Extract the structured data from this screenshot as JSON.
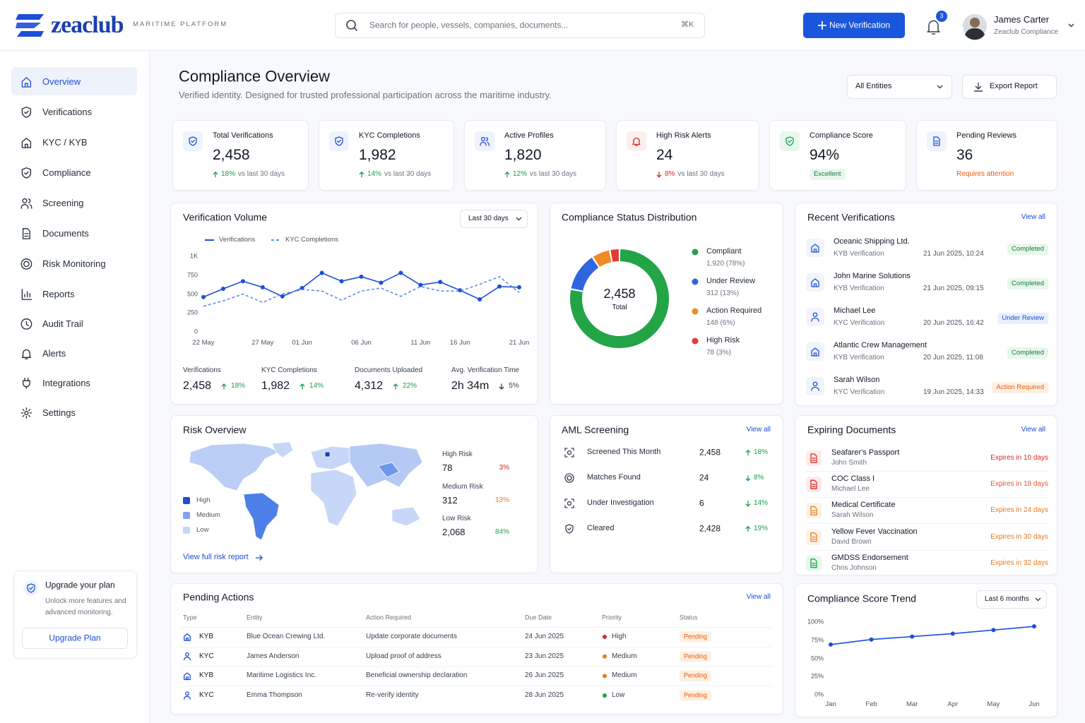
{
  "header": {
    "logo": "zeaclub",
    "tagline": "MARITIME PLATFORM",
    "search_placeholder": "Search for people, vessels, companies, documents...",
    "search_shortcut": "⌘K",
    "new_button": "New Verification",
    "notification_count": 3,
    "user": {
      "name": "James Carter",
      "role": "Zeaclub Compliance"
    }
  },
  "nav": {
    "items": [
      "Overview",
      "Verifications",
      "KYC / KYB",
      "Compliance",
      "Screening",
      "Documents",
      "Risk Monitoring",
      "Reports",
      "Audit Trail",
      "Alerts",
      "Integrations",
      "Settings"
    ]
  },
  "upgrade": {
    "title": "Upgrade your plan",
    "text": "Unlock more features and advanced monitoring.",
    "button": "Upgrade Plan"
  },
  "page": {
    "title": "Compliance Overview",
    "subtitle": "Verified identity. Designed for trusted professional participation across the maritime industry.",
    "entity_filter": "All Entities",
    "export_button": "Export Report"
  },
  "kpis": [
    {
      "label": "Total Verifications",
      "value": "2,458",
      "change": "18%",
      "direction": "up",
      "color": "#16a34a",
      "note": "vs last 30 days"
    },
    {
      "label": "KYC Completions",
      "value": "1,982",
      "change": "14%",
      "direction": "up",
      "color": "#16a34a",
      "note": "vs last 30 days"
    },
    {
      "label": "Active Profiles",
      "value": "1,820",
      "change": "12%",
      "direction": "up",
      "color": "#16a34a",
      "note": "vs last 30 days"
    },
    {
      "label": "High Risk Alerts",
      "value": "24",
      "change": "8%",
      "direction": "down",
      "color": "#dc2626",
      "note": "vs last 30 days"
    },
    {
      "label": "Compliance Score",
      "value": "94%",
      "badge": "Excellent",
      "color": "#16a34a"
    },
    {
      "label": "Pending Reviews",
      "value": "36",
      "status": "Requires attention",
      "color": "#ea580c"
    }
  ],
  "volume": {
    "type": "line",
    "title": "Verification Volume",
    "range": "Last 30 days",
    "categories": [
      "22 May",
      null,
      null,
      "27 May",
      null,
      "01 Jun",
      null,
      null,
      "06 Jun",
      null,
      null,
      "11 Jun",
      null,
      "16 Jun",
      null,
      null,
      "21 Jun"
    ],
    "series": [
      {
        "name": "Verifications",
        "color": "#1d4ed8",
        "style": "solid",
        "markers": true,
        "values": [
          460,
          570,
          670,
          590,
          470,
          580,
          780,
          670,
          730,
          650,
          780,
          620,
          660,
          550,
          430,
          600,
          590
        ]
      },
      {
        "name": "KYC Completions",
        "color": "#5b8def",
        "style": "dashed",
        "markers": false,
        "values": [
          340,
          410,
          500,
          390,
          500,
          560,
          540,
          420,
          540,
          580,
          470,
          600,
          540,
          540,
          630,
          730,
          520
        ]
      }
    ],
    "ylim": [
      0,
      1000
    ],
    "yticks": [
      {
        "value": 1000,
        "label": "1K"
      },
      750,
      500,
      250,
      0
    ],
    "stats": [
      {
        "label": "Verifications",
        "value": "2,458",
        "change": "18%",
        "direction": "up",
        "color": "#16a34a"
      },
      {
        "label": "KYC Completions",
        "value": "1,982",
        "change": "14%",
        "direction": "up",
        "color": "#16a34a"
      },
      {
        "label": "Documents Uploaded",
        "value": "4,312",
        "change": "22%",
        "direction": "up",
        "color": "#16a34a"
      },
      {
        "label": "Avg. Verification Time",
        "value": "2h 34m",
        "change": "5%",
        "direction": "down",
        "color": "#374151"
      }
    ]
  },
  "distribution": {
    "type": "pie",
    "title": "Compliance Status Distribution",
    "total": "2,458",
    "total_label": "Total",
    "categories": [
      "Compliant",
      "Under Review",
      "Action Required",
      "High Risk"
    ],
    "values": [
      1920,
      312,
      148,
      78
    ],
    "value_labels": [
      "1,920 (78%)",
      "312 (13%)",
      "148 (6%)",
      "78 (3%)"
    ],
    "colors": [
      "#22a447",
      "#2f66e0",
      "#f08a24",
      "#e53935"
    ]
  },
  "recent": {
    "title": "Recent Verifications",
    "view_all": "View all",
    "items": [
      {
        "name": "Oceanic Shipping Ltd.",
        "type": "KYB Verification",
        "date": "21 Jun 2025, 10:24",
        "status": "Completed",
        "status_color": "green"
      },
      {
        "name": "John Marine Solutions",
        "type": "KYB Verification",
        "date": "21 Jun 2025, 09:15",
        "status": "Completed",
        "status_color": "green"
      },
      {
        "name": "Michael Lee",
        "type": "KYC Verification",
        "date": "20 Jun 2025, 16:42",
        "status": "Under Review",
        "status_color": "blue"
      },
      {
        "name": "Atlantic Crew Management",
        "type": "KYB Verification",
        "date": "20 Jun 2025, 11:08",
        "status": "Completed",
        "status_color": "green"
      },
      {
        "name": "Sarah Wilson",
        "type": "KYC Verification",
        "date": "19 Jun 2025, 14:33",
        "status": "Action Required",
        "status_color": "orange"
      }
    ]
  },
  "risk": {
    "title": "Risk Overview",
    "legend": [
      "High",
      "Medium",
      "Low"
    ],
    "legend_colors": [
      "#1d4ed8",
      "#7fa3f0",
      "#c7d7f7"
    ],
    "levels": [
      {
        "label": "High Risk",
        "value": "78",
        "share": "3%",
        "color": "#dc2626"
      },
      {
        "label": "Medium Risk",
        "value": "312",
        "share": "13%",
        "color": "#ea7a1a"
      },
      {
        "label": "Low Risk",
        "value": "2,068",
        "share": "84%",
        "color": "#16a34a"
      }
    ],
    "link": "View full risk report"
  },
  "aml": {
    "title": "AML Screening",
    "view_all": "View all",
    "rows": [
      {
        "label": "Screened This Month",
        "value": "2,458",
        "change": "18%",
        "direction": "up",
        "color": "#16a34a"
      },
      {
        "label": "Matches Found",
        "value": "24",
        "change": "8%",
        "direction": "down",
        "color": "#16a34a"
      },
      {
        "label": "Under Investigation",
        "value": "6",
        "change": "14%",
        "direction": "down",
        "color": "#16a34a"
      },
      {
        "label": "Cleared",
        "value": "2,428",
        "change": "19%",
        "direction": "up",
        "color": "#16a34a"
      }
    ]
  },
  "expiring": {
    "title": "Expiring Documents",
    "view_all": "View all",
    "items": [
      {
        "document": "Seafarer's Passport",
        "holder": "John Smith",
        "expires": "Expires in 10 days",
        "color": "#dc2626",
        "icon_color": "#dc2626"
      },
      {
        "document": "COC Class I",
        "holder": "Michael Lee",
        "expires": "Expires in 18 days",
        "color": "#e4572e",
        "icon_color": "#dc2626"
      },
      {
        "document": "Medical Certificate",
        "holder": "Sarah Wilson",
        "expires": "Expires in 24 days",
        "color": "#ea7a1a",
        "icon_color": "#ea7a1a"
      },
      {
        "document": "Yellow Fever Vaccination",
        "holder": "David Brown",
        "expires": "Expires in 30 days",
        "color": "#ea7a1a",
        "icon_color": "#ea7a1a"
      },
      {
        "document": "GMDSS Endorsement",
        "holder": "Chris Johnson",
        "expires": "Expires in 32 days",
        "color": "#ea7a1a",
        "icon_color": "#16a34a"
      }
    ]
  },
  "pending": {
    "title": "Pending Actions",
    "view_all": "View all",
    "columns": [
      "Type",
      "Entity",
      "Action Required",
      "Due Date",
      "Priority",
      "Status"
    ],
    "rows": [
      [
        "KYB",
        "Blue Ocean Crewing Ltd.",
        "Update corporate documents",
        "24 Jun 2025",
        "High",
        "Pending"
      ],
      [
        "KYC",
        "James Anderson",
        "Upload proof of address",
        "23 Jun 2025",
        "Medium",
        "Pending"
      ],
      [
        "KYB",
        "Maritime Logistics Inc.",
        "Beneficial ownership declaration",
        "26 Jun 2025",
        "Medium",
        "Pending"
      ],
      [
        "KYC",
        "Emma Thompson",
        "Re-verify identity",
        "28 Jun 2025",
        "Low",
        "Pending"
      ]
    ],
    "priority_colors": [
      "#dc2626",
      "#ea7a1a",
      "#ea7a1a",
      "#16a34a"
    ]
  },
  "trend": {
    "type": "line",
    "title": "Compliance Score Trend",
    "range": "Last 6 months",
    "categories": [
      "Jan",
      "Feb",
      "Mar",
      "Apr",
      "May",
      "Jun"
    ],
    "values": [
      69,
      76,
      80,
      84,
      89,
      94
    ],
    "color": "#1d4ed8",
    "markers": true,
    "ylim": [
      0,
      100
    ],
    "yticks": [
      {
        "value": 100,
        "label": "100%"
      },
      {
        "value": 75,
        "label": "75%"
      },
      {
        "value": 50,
        "label": "50%"
      },
      {
        "value": 25,
        "label": "25%"
      },
      {
        "value": 0,
        "label": "0%"
      }
    ]
  }
}
